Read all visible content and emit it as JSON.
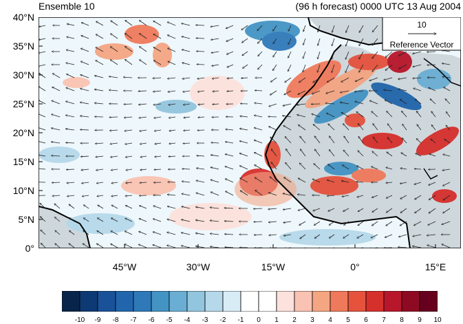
{
  "header": {
    "left_title": "Ensemble 10",
    "right_title": "(96 h forecast) 0000 UTC 13 Aug 2004"
  },
  "reference_vector": {
    "magnitude": "10",
    "label": "Reference Vector"
  },
  "map": {
    "lat_labels": [
      "40°N",
      "35°N",
      "30°N",
      "25°N",
      "20°N",
      "15°N",
      "10°N",
      "5°N",
      "0°"
    ],
    "lon_labels": [
      "45°W",
      "30°W",
      "15°W",
      "0°",
      "15°E"
    ],
    "extent": {
      "lon_min": -58,
      "lon_max": 18,
      "lat_min": 0,
      "lat_max": 40
    },
    "land_color": "#c8c8c8",
    "ocean_color": "#ffffff"
  },
  "colorbar": {
    "labels": [
      "-10",
      "-9",
      "-8",
      "-7",
      "-6",
      "-5",
      "-4",
      "-3",
      "-2",
      "-1",
      "0",
      "1",
      "2",
      "3",
      "4",
      "5",
      "6",
      "7",
      "8",
      "9",
      "10"
    ],
    "colors": [
      "#08244a",
      "#0d3a74",
      "#1a529a",
      "#2166ac",
      "#2f79b9",
      "#4393c3",
      "#6aaed4",
      "#92c5de",
      "#b5d9ea",
      "#d8ecf6",
      "#ffffff",
      "#ffffff",
      "#fce1dc",
      "#f9c2b2",
      "#f4a582",
      "#ef7a5b",
      "#e5533d",
      "#d6302d",
      "#b8172b",
      "#8e0a22",
      "#67001f"
    ]
  }
}
